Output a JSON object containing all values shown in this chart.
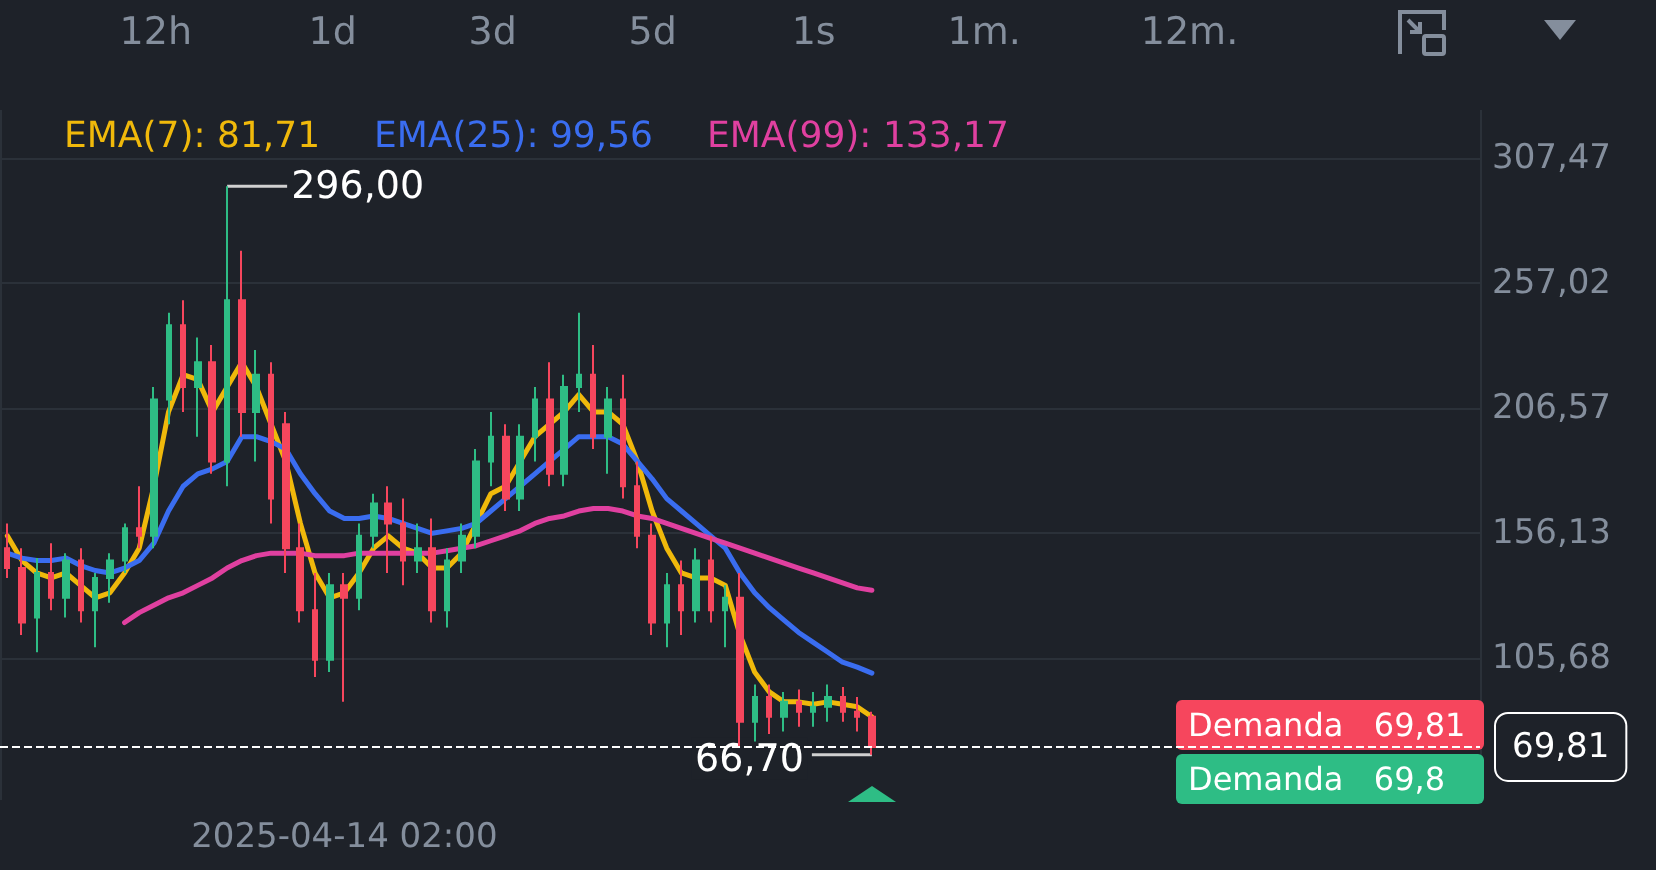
{
  "chart_data": {
    "type": "candlestick",
    "categories": [
      null,
      null,
      null,
      null,
      null,
      null,
      null,
      null,
      null,
      null,
      null,
      null,
      null,
      null,
      null,
      null,
      null,
      null,
      null,
      null,
      null,
      null,
      null,
      "2025-04-14 02:00",
      null,
      null,
      null,
      null,
      null,
      null,
      null,
      null,
      null,
      null,
      null,
      null,
      null,
      null,
      null,
      null,
      null,
      null,
      null,
      null,
      null,
      null,
      null,
      null,
      null,
      null,
      null,
      null,
      null,
      null,
      null,
      null,
      null,
      null,
      null,
      null
    ],
    "ohlc": [
      [
        150,
        160,
        138,
        142
      ],
      [
        142,
        150,
        115,
        120
      ],
      [
        122,
        146,
        108,
        140
      ],
      [
        140,
        152,
        125,
        130
      ],
      [
        130,
        148,
        122,
        145
      ],
      [
        145,
        150,
        120,
        125
      ],
      [
        125,
        140,
        110,
        138
      ],
      [
        138,
        148,
        128,
        145
      ],
      [
        145,
        160,
        140,
        158
      ],
      [
        158,
        175,
        150,
        155
      ],
      [
        155,
        215,
        150,
        210
      ],
      [
        210,
        245,
        200,
        240
      ],
      [
        240,
        250,
        205,
        215
      ],
      [
        215,
        235,
        195,
        225
      ],
      [
        225,
        232,
        180,
        185
      ],
      [
        185,
        296,
        175,
        250
      ],
      [
        250,
        270,
        195,
        205
      ],
      [
        205,
        230,
        185,
        220
      ],
      [
        220,
        225,
        160,
        170
      ],
      [
        200,
        205,
        140,
        150
      ],
      [
        150,
        160,
        120,
        125
      ],
      [
        125,
        140,
        98,
        105
      ],
      [
        105,
        140,
        100,
        135
      ],
      [
        135,
        140,
        88,
        130
      ],
      [
        130,
        160,
        125,
        155
      ],
      [
        155,
        172,
        150,
        168
      ],
      [
        168,
        175,
        140,
        160
      ],
      [
        160,
        170,
        135,
        145
      ],
      [
        145,
        160,
        140,
        150
      ],
      [
        150,
        162,
        120,
        125
      ],
      [
        125,
        150,
        118,
        145
      ],
      [
        145,
        160,
        140,
        155
      ],
      [
        155,
        190,
        150,
        185
      ],
      [
        185,
        205,
        175,
        195
      ],
      [
        195,
        200,
        165,
        170
      ],
      [
        170,
        200,
        165,
        195
      ],
      [
        195,
        215,
        185,
        210
      ],
      [
        210,
        225,
        175,
        180
      ],
      [
        180,
        220,
        175,
        215
      ],
      [
        215,
        245,
        205,
        220
      ],
      [
        220,
        232,
        190,
        195
      ],
      [
        195,
        215,
        180,
        210
      ],
      [
        210,
        220,
        170,
        175
      ],
      [
        175,
        185,
        150,
        155
      ],
      [
        155,
        160,
        115,
        120
      ],
      [
        120,
        140,
        110,
        135
      ],
      [
        135,
        145,
        115,
        125
      ],
      [
        125,
        150,
        120,
        145
      ],
      [
        145,
        155,
        120,
        125
      ],
      [
        125,
        135,
        110,
        130
      ],
      [
        130,
        140,
        70,
        80
      ],
      [
        80,
        95,
        72,
        90
      ],
      [
        90,
        95,
        75,
        82
      ],
      [
        82,
        92,
        76,
        88
      ],
      [
        88,
        93,
        78,
        84
      ],
      [
        84,
        92,
        78,
        86
      ],
      [
        86,
        95,
        80,
        90
      ],
      [
        90,
        94,
        80,
        84
      ],
      [
        84,
        90,
        76,
        82
      ],
      [
        82,
        84,
        66.7,
        69.81
      ]
    ],
    "series": [
      {
        "name": "EMA(7): 81,71",
        "type": "line",
        "color": "#f0b90b",
        "values": [
          155,
          145,
          140,
          138,
          140,
          135,
          130,
          132,
          140,
          150,
          175,
          205,
          220,
          218,
          205,
          215,
          225,
          215,
          200,
          185,
          160,
          140,
          130,
          132,
          140,
          150,
          155,
          150,
          148,
          142,
          142,
          148,
          160,
          172,
          175,
          185,
          195,
          200,
          205,
          212,
          205,
          205,
          200,
          185,
          165,
          150,
          140,
          138,
          138,
          135,
          115,
          100,
          92,
          88,
          88,
          87,
          88,
          87,
          86,
          82
        ]
      },
      {
        "name": "EMA(25): 99,56",
        "type": "line",
        "color": "#3a6df0",
        "values": [
          148,
          146,
          145,
          145,
          146,
          143,
          141,
          140,
          142,
          145,
          152,
          165,
          175,
          180,
          182,
          185,
          195,
          195,
          193,
          190,
          180,
          172,
          165,
          162,
          162,
          163,
          162,
          160,
          158,
          156,
          157,
          158,
          160,
          165,
          170,
          175,
          180,
          185,
          190,
          195,
          195,
          195,
          192,
          185,
          178,
          170,
          165,
          160,
          155,
          150,
          140,
          132,
          126,
          121,
          116,
          112,
          108,
          104,
          102,
          99.6
        ]
      },
      {
        "name": "EMA(99): 133,17",
        "type": "line",
        "color": "#e040a0",
        "values": [
          null,
          null,
          null,
          null,
          null,
          null,
          null,
          null,
          120,
          124,
          127,
          130,
          132,
          135,
          138,
          142,
          145,
          147,
          148,
          148,
          148,
          147,
          147,
          147,
          148,
          148,
          148,
          148,
          148,
          148,
          149,
          150,
          151,
          153,
          155,
          157,
          160,
          162,
          163,
          165,
          166,
          166,
          165,
          163,
          162,
          160,
          158,
          156,
          154,
          152,
          150,
          148,
          146,
          144,
          142,
          140,
          138,
          136,
          134,
          133
        ]
      }
    ],
    "ylim": [
      48.4,
      326.8
    ],
    "yticks": [
      {
        "value": 105.68,
        "label": "105,68"
      },
      {
        "value": 156.13,
        "label": "156,13"
      },
      {
        "value": 206.57,
        "label": "206,57"
      },
      {
        "value": 257.02,
        "label": "257,02"
      },
      {
        "value": 307.47,
        "label": "307,47"
      }
    ],
    "grid": true,
    "legend": "top",
    "line_style": "solid",
    "marker": "none",
    "ref_lines": [
      {
        "axis": "y",
        "value": 69.81,
        "label": "69,81",
        "line_style": "dashed",
        "color": "#ffffff"
      }
    ],
    "annotations": [
      "12h",
      "1d",
      "3d",
      "5d",
      "1s",
      "1m.",
      "12m.",
      "296,00",
      "66,70",
      "Demanda   69,81",
      "Demanda   69,8"
    ]
  }
}
